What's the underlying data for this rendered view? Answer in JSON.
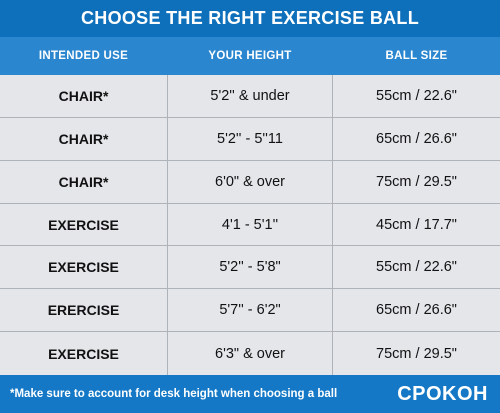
{
  "title": "CHOOSE THE RIGHT EXERCISE BALL",
  "headers": [
    "INTENDED USE",
    "YOUR HEIGHT",
    "BALL SIZE"
  ],
  "rows": [
    {
      "use": "CHAIR*",
      "height": "5'2'' & under",
      "size": "55cm / 22.6\""
    },
    {
      "use": "CHAIR*",
      "height": "5'2'' - 5''11",
      "size": "65cm / 26.6\""
    },
    {
      "use": "CHAIR*",
      "height": "6'0\" & over",
      "size": "75cm / 29.5\""
    },
    {
      "use": "EXERCISE",
      "height": "4'1 - 5'1''",
      "size": "45cm / 17.7\""
    },
    {
      "use": "EXERCISE",
      "height": "5'2'' - 5'8\"",
      "size": "55cm / 22.6\""
    },
    {
      "use": "ERERCISE",
      "height": "5'7'' - 6'2\"",
      "size": "65cm / 26.6\""
    },
    {
      "use": "EXERCISE",
      "height": "6'3\" & over",
      "size": "75cm / 29.5\""
    }
  ],
  "footer": {
    "note": "*Make sure to account for desk height when choosing a ball",
    "brand": "CPOKOH"
  },
  "colors": {
    "banner": "#0e6fbb",
    "header_row": "#2a86cf",
    "body": "#e4e6ea",
    "footer": "#1478c6"
  }
}
